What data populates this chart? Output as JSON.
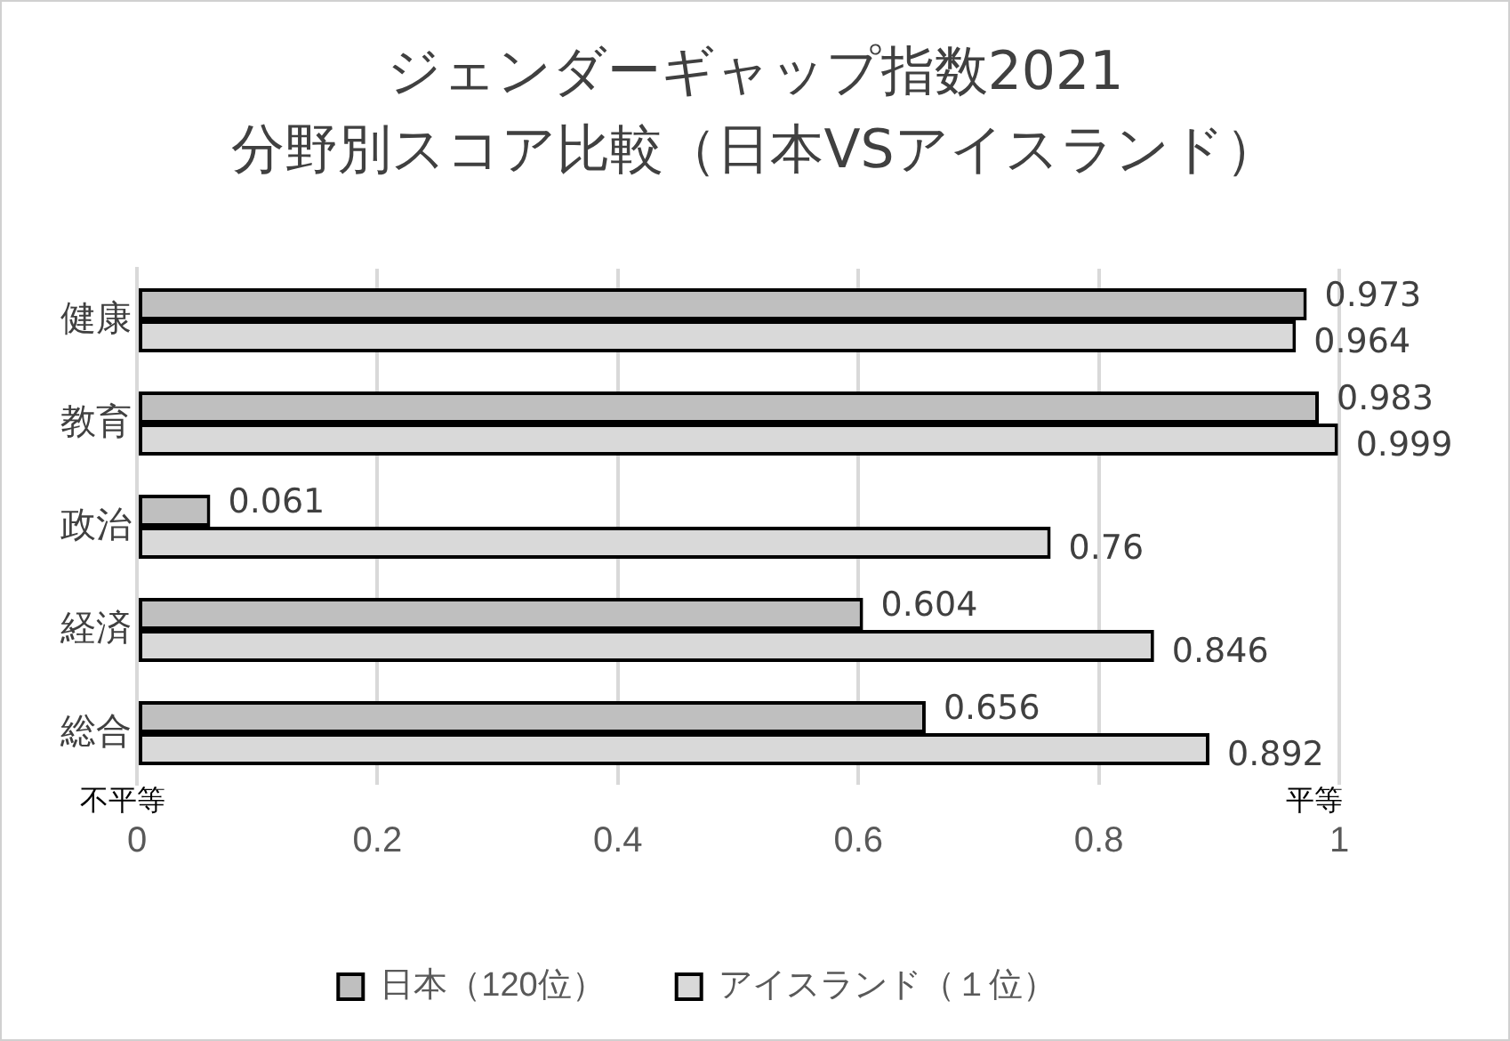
{
  "chart_data": {
    "type": "bar",
    "orientation": "horizontal",
    "title": "ジェンダーギャップ指数2021",
    "subtitle": "分野別スコア比較（日本VSアイスランド）",
    "categories": [
      "健康",
      "教育",
      "政治",
      "経済",
      "総合"
    ],
    "series": [
      {
        "name": "日本（120位）",
        "color": "#bfbfbf",
        "values": [
          0.973,
          0.983,
          0.061,
          0.604,
          0.656
        ]
      },
      {
        "name": "アイスランド（１位）",
        "color": "#d9d9d9",
        "values": [
          0.964,
          0.999,
          0.76,
          0.846,
          0.892
        ]
      }
    ],
    "xlim": [
      0,
      1
    ],
    "xticks": [
      0,
      0.2,
      0.4,
      0.6,
      0.8,
      1
    ],
    "annotations": [
      "不平等",
      "平等"
    ],
    "data_labels": true,
    "grid": "x",
    "legend": "bottom"
  }
}
